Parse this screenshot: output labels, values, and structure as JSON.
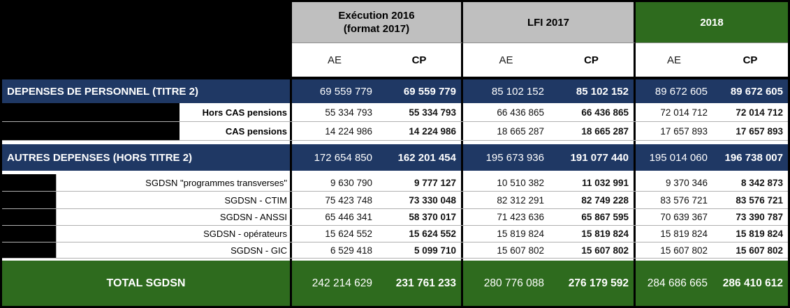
{
  "header": {
    "groups": [
      {
        "line1": "Exécution 2016",
        "line2": "(format 2017)"
      },
      {
        "line1": "LFI 2017"
      },
      {
        "line1": "2018"
      }
    ],
    "ae": "AE",
    "cp": "CP"
  },
  "rows": {
    "depenses_personnel": {
      "label": "DEPENSES DE PERSONNEL (TITRE 2)",
      "values": [
        "69 559 779",
        "69 559 779",
        "85 102 152",
        "85 102 152",
        "89 672 605",
        "89 672 605"
      ]
    },
    "hors_cas": {
      "label": "Hors CAS pensions",
      "values": [
        "55 334 793",
        "55 334 793",
        "66 436 865",
        "66 436 865",
        "72 014 712",
        "72 014 712"
      ]
    },
    "cas": {
      "label": "CAS pensions",
      "values": [
        "14 224 986",
        "14 224 986",
        "18 665 287",
        "18 665 287",
        "17 657 893",
        "17 657 893"
      ]
    },
    "autres_depenses": {
      "label": "AUTRES DEPENSES (HORS TITRE 2)",
      "values": [
        "172 654 850",
        "162 201 454",
        "195 673 936",
        "191 077 440",
        "195 014 060",
        "196 738 007"
      ]
    },
    "transverses": {
      "label": "SGDSN \"programmes transverses\"",
      "values": [
        "9 630 790",
        "9 777 127",
        "10 510 382",
        "11 032 991",
        "9 370 346",
        "8 342 873"
      ]
    },
    "ctim": {
      "label": "SGDSN - CTIM",
      "values": [
        "75 423 748",
        "73 330 048",
        "82 312 291",
        "82 749 228",
        "83 576 721",
        "83 576 721"
      ]
    },
    "anssi": {
      "label": "SGDSN - ANSSI",
      "values": [
        "65 446 341",
        "58 370 017",
        "71 423 636",
        "65 867 595",
        "70 639 367",
        "73 390 787"
      ]
    },
    "operateurs": {
      "label": "SGDSN - opérateurs",
      "values": [
        "15 624 552",
        "15 624 552",
        "15 819 824",
        "15 819 824",
        "15 819 824",
        "15 819 824"
      ]
    },
    "gic": {
      "label": "SGDSN - GIC",
      "values": [
        "6 529 418",
        "5 099 710",
        "15 607 802",
        "15 607 802",
        "15 607 802",
        "15 607 802"
      ]
    },
    "total": {
      "label": "TOTAL SGDSN",
      "values": [
        "242 214 629",
        "231 761 233",
        "280 776 088",
        "276 179 592",
        "284 686 665",
        "286 410 612"
      ]
    }
  },
  "colors": {
    "navy": "#1F3864",
    "green": "#2E6B1E",
    "header_gray": "#BFBFBF",
    "grid_gray": "#B0B0B0",
    "border_black": "#000000"
  }
}
